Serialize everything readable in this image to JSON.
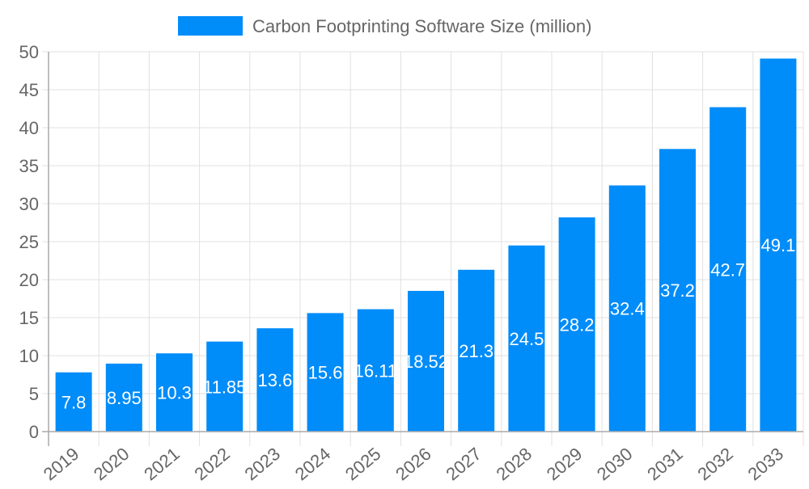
{
  "chart_data": {
    "type": "bar",
    "title": "",
    "xlabel": "",
    "ylabel": "",
    "categories": [
      "2019",
      "2020",
      "2021",
      "2022",
      "2023",
      "2024",
      "2025",
      "2026",
      "2027",
      "2028",
      "2029",
      "2030",
      "2031",
      "2032",
      "2033"
    ],
    "series": [
      {
        "name": "Carbon Footprinting Software Size (million)",
        "values": [
          7.8,
          8.95,
          10.3,
          11.85,
          13.6,
          15.6,
          16.11,
          18.52,
          21.3,
          24.5,
          28.2,
          32.4,
          37.2,
          42.7,
          49.1
        ]
      }
    ],
    "data_labels": [
      "7.8",
      "8.95",
      "10.3",
      "11.85",
      "13.6",
      "15.6",
      "16.11",
      "18.52",
      "21.3",
      "24.5",
      "28.2",
      "32.4",
      "37.2",
      "42.7",
      "49.1"
    ],
    "ylim": [
      0,
      50
    ],
    "yticks": [
      "0",
      "5",
      "10",
      "15",
      "20",
      "25",
      "30",
      "35",
      "40",
      "45",
      "50"
    ],
    "grid": true,
    "legend_position": "top",
    "colors": {
      "bar": "#008cf9",
      "grid": "#e0e0e0",
      "axis": "#aaaaaa",
      "text": "#666666",
      "label": "#ffffff"
    }
  }
}
